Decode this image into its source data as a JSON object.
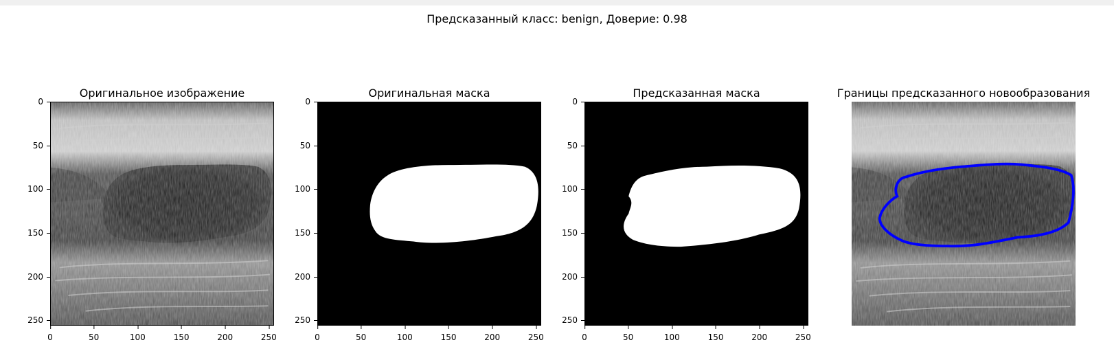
{
  "figure": {
    "suptitle": "Предсказанный класс: benign, Доверие: 0.98",
    "panels": [
      {
        "title": "Оригинальное изображение",
        "kind": "ultrasound",
        "axes": true
      },
      {
        "title": "Оригинальная маска",
        "kind": "mask",
        "axes": true
      },
      {
        "title": "Предсказанная маска",
        "kind": "predmask",
        "axes": true
      },
      {
        "title": "Границы предсказанного новообразования",
        "kind": "overlay",
        "axes": false
      }
    ],
    "yticks": [
      "0",
      "50",
      "100",
      "150",
      "200",
      "250"
    ],
    "xticks": [
      "0",
      "50",
      "100",
      "150",
      "200",
      "250"
    ],
    "contour_color": "#0000ff"
  }
}
